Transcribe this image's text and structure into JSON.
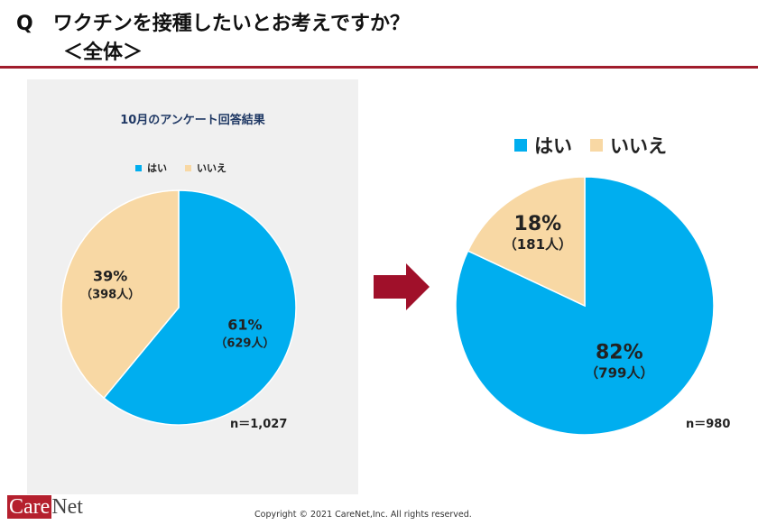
{
  "title": {
    "line1": "Q　ワクチンを接種したいとお考えですか？",
    "line2": "＜全体＞"
  },
  "colors": {
    "yes": "#00aeef",
    "no": "#f8d8a4",
    "rule": "#a01c2c",
    "arrow": "#a0102a",
    "panel": "#f0f0f0"
  },
  "chart_data": [
    {
      "type": "pie",
      "title": "10月のアンケート回答結果",
      "legend": [
        "はい",
        "いいえ"
      ],
      "legend_position": "top",
      "slices": [
        {
          "name": "はい",
          "percent": 61,
          "count": 629,
          "label_pct": "61%",
          "label_count": "（629人）"
        },
        {
          "name": "いいえ",
          "percent": 39,
          "count": 398,
          "label_pct": "39%",
          "label_count": "（398人）"
        }
      ],
      "n_label": "n＝1,027"
    },
    {
      "type": "pie",
      "legend": [
        "はい",
        "いいえ"
      ],
      "legend_position": "top",
      "slices": [
        {
          "name": "はい",
          "percent": 82,
          "count": 799,
          "label_pct": "82%",
          "label_count": "（799人）"
        },
        {
          "name": "いいえ",
          "percent": 18,
          "count": 181,
          "label_pct": "18%",
          "label_count": "（181人）"
        }
      ],
      "n_label": "n＝980"
    }
  ],
  "arrow_icon": "right-arrow",
  "footer": {
    "logo_care": "Care",
    "logo_net": "Net",
    "copyright": "Copyright © 2021 CareNet,Inc.  All rights reserved."
  }
}
